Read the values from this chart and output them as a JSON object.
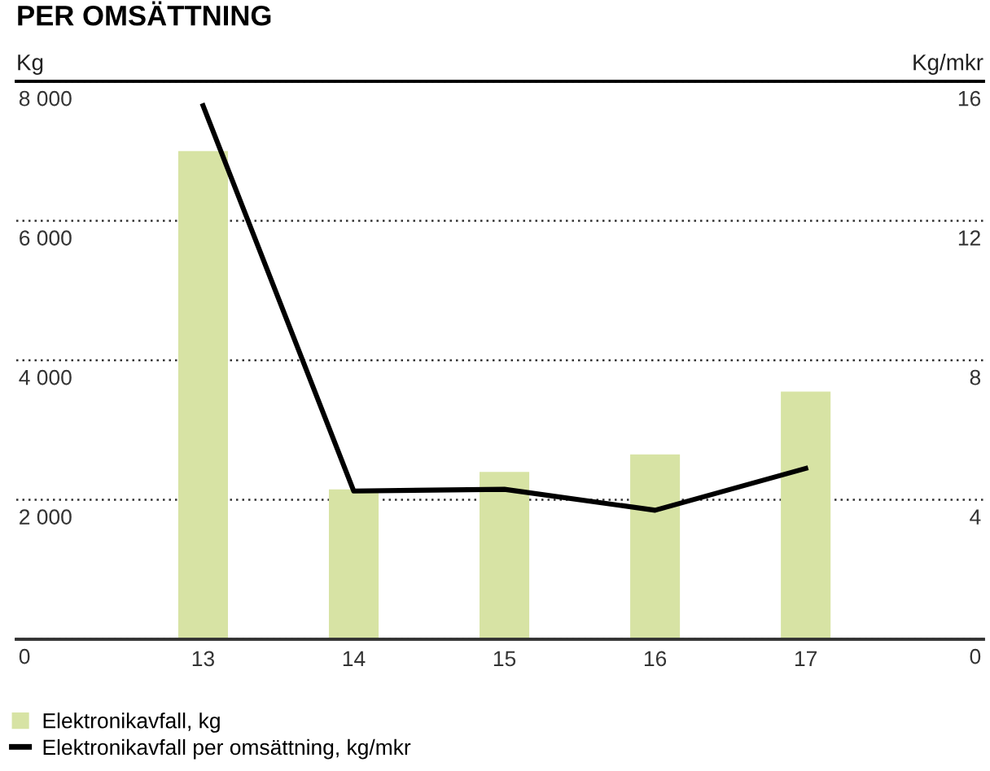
{
  "chart_data": {
    "type": "bar",
    "title": "PER OMSÄTTNING",
    "ylabel": "Kg",
    "y2label": "Kg/mkr",
    "categories": [
      "13",
      "14",
      "15",
      "16",
      "17"
    ],
    "series": [
      {
        "name": "Elektronikavfall, kg",
        "color": "#d7e3a4",
        "values": [
          7000,
          2150,
          2400,
          2650,
          3550
        ]
      },
      {
        "name": "Elektronikavfall per omsättning, kg/mkr",
        "type": "line",
        "axis": "y2",
        "color": "#000000",
        "values": [
          15.3,
          4.25,
          4.3,
          3.7,
          4.9
        ]
      }
    ],
    "ylim": [
      0,
      8000
    ],
    "yticks": [
      0,
      {
        "value": 2000,
        "label": "2 000"
      },
      {
        "value": 4000,
        "label": "4 000"
      },
      {
        "value": 6000,
        "label": "6 000"
      },
      {
        "value": 8000,
        "label": "8 000"
      }
    ],
    "y2lim": [
      0,
      16
    ],
    "y2ticks": [
      0,
      4,
      8,
      12,
      16
    ],
    "grid": "y",
    "legend": "bottom left",
    "marker": "none",
    "line_style": "solid"
  }
}
